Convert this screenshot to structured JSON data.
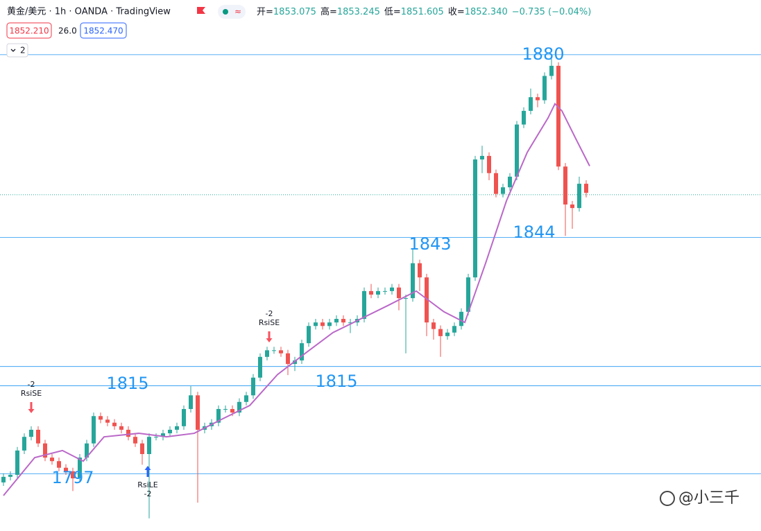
{
  "chart_data": {
    "type": "candlestick",
    "title": "黄金/美元 · 1h · OANDA · TradingView",
    "readout": [
      {
        "key": "开=",
        "value": 1853.075,
        "label": "1853.075"
      },
      {
        "key": "高=",
        "value": 1853.245,
        "label": "1853.245"
      },
      {
        "key": "低=",
        "value": 1851.605,
        "label": "1851.605"
      },
      {
        "key": "收=",
        "value": 1852.34,
        "label": "1852.340"
      }
    ],
    "change": "−0.735 (−0.04%)",
    "bid": "1852.210",
    "spread": "26.0",
    "ask": "1852.470",
    "indicator_count": "2",
    "ylim": [
      1785.9,
      1890.8
    ],
    "up_color": "#26a69a",
    "down_color": "#ef5350",
    "open": [
      1795.5,
      1796.6,
      1797.0,
      1801.8,
      1804.5,
      1805.9,
      1803.2,
      1800.4,
      1799.7,
      1798.4,
      1797.7,
      1796.3,
      1800.4,
      1803.2,
      1808.6,
      1807.9,
      1807.3,
      1806.6,
      1805.9,
      1804.5,
      1803.2,
      1801.1,
      1804.5,
      1804.5,
      1805.2,
      1805.9,
      1806.6,
      1810.0,
      1812.7,
      1805.9,
      1806.6,
      1807.3,
      1810.0,
      1810.0,
      1809.3,
      1811.4,
      1812.7,
      1816.2,
      1820.3,
      1821.6,
      1821.6,
      1821.0,
      1818.9,
      1819.6,
      1823.0,
      1826.4,
      1827.1,
      1826.4,
      1827.1,
      1827.8,
      1827.1,
      1827.1,
      1827.8,
      1833.3,
      1832.6,
      1833.3,
      1833.3,
      1834.0,
      1831.9,
      1831.9,
      1838.8,
      1836.0,
      1827.1,
      1825.8,
      1824.4,
      1825.1,
      1826.4,
      1829.2,
      1836.0,
      1859.3,
      1860.0,
      1856.6,
      1852.5,
      1853.8,
      1855.9,
      1866.2,
      1868.9,
      1871.6,
      1871.0,
      1875.8,
      1877.8,
      1857.9,
      1850.4,
      1849.7,
      1854.5
    ],
    "high": [
      1797.3,
      1797.7,
      1802.5,
      1805.2,
      1806.6,
      1806.6,
      1803.9,
      1801.1,
      1800.4,
      1799.1,
      1798.4,
      1801.1,
      1803.9,
      1809.3,
      1809.3,
      1808.6,
      1808.0,
      1807.3,
      1806.6,
      1805.2,
      1803.9,
      1805.2,
      1805.2,
      1805.9,
      1806.6,
      1807.3,
      1810.7,
      1814.5,
      1813.4,
      1807.3,
      1808.0,
      1810.7,
      1810.7,
      1810.7,
      1812.1,
      1813.4,
      1816.9,
      1821.0,
      1822.3,
      1822.3,
      1822.3,
      1821.7,
      1820.3,
      1823.7,
      1827.1,
      1827.8,
      1827.8,
      1827.8,
      1828.5,
      1828.5,
      1827.8,
      1828.5,
      1834.0,
      1834.7,
      1834.0,
      1834.0,
      1834.7,
      1834.7,
      1832.6,
      1841.5,
      1839.5,
      1836.7,
      1827.8,
      1826.5,
      1825.8,
      1827.1,
      1829.9,
      1836.7,
      1860.0,
      1862.0,
      1860.7,
      1857.3,
      1854.5,
      1856.6,
      1866.9,
      1869.6,
      1873.3,
      1872.3,
      1876.5,
      1879.2,
      1878.5,
      1858.6,
      1851.1,
      1855.9,
      1855.2
    ],
    "low": [
      1794.8,
      1795.9,
      1796.3,
      1801.1,
      1803.8,
      1802.5,
      1799.7,
      1799.0,
      1797.7,
      1797.0,
      1793.8,
      1795.6,
      1799.7,
      1802.5,
      1807.2,
      1806.6,
      1805.9,
      1805.2,
      1803.8,
      1802.5,
      1799.0,
      1788.4,
      1803.8,
      1803.8,
      1804.5,
      1805.2,
      1805.9,
      1809.3,
      1791.5,
      1805.2,
      1805.9,
      1806.6,
      1809.3,
      1808.6,
      1808.6,
      1810.7,
      1812.0,
      1815.5,
      1819.6,
      1820.9,
      1820.3,
      1816.7,
      1817.5,
      1818.9,
      1822.3,
      1825.7,
      1825.7,
      1825.7,
      1826.4,
      1826.4,
      1825.0,
      1826.4,
      1827.1,
      1831.9,
      1831.9,
      1832.6,
      1832.6,
      1829.5,
      1821.0,
      1831.2,
      1833.3,
      1824.4,
      1823.7,
      1820.3,
      1823.7,
      1824.4,
      1825.7,
      1828.5,
      1835.3,
      1856.6,
      1855.2,
      1851.8,
      1851.8,
      1853.1,
      1855.2,
      1865.5,
      1868.2,
      1869.6,
      1870.3,
      1875.1,
      1857.2,
      1844.2,
      1845.6,
      1849.0,
      1851.8
    ],
    "close": [
      1796.6,
      1797.0,
      1801.8,
      1804.5,
      1805.9,
      1803.2,
      1800.4,
      1799.7,
      1798.4,
      1797.7,
      1796.3,
      1800.4,
      1803.2,
      1808.6,
      1807.9,
      1807.3,
      1806.6,
      1805.9,
      1804.5,
      1803.2,
      1801.1,
      1804.5,
      1804.5,
      1805.2,
      1805.9,
      1806.6,
      1810.0,
      1812.7,
      1805.9,
      1806.6,
      1807.3,
      1810.0,
      1810.0,
      1809.3,
      1811.4,
      1812.7,
      1816.2,
      1820.3,
      1821.6,
      1821.6,
      1821.0,
      1818.9,
      1819.6,
      1823.0,
      1826.4,
      1827.1,
      1826.4,
      1827.1,
      1827.8,
      1827.1,
      1827.1,
      1827.8,
      1833.3,
      1832.6,
      1833.3,
      1833.3,
      1834.0,
      1831.9,
      1831.9,
      1838.8,
      1836.0,
      1827.1,
      1825.8,
      1824.4,
      1825.1,
      1826.4,
      1829.2,
      1836.0,
      1859.3,
      1860.0,
      1856.6,
      1852.5,
      1853.8,
      1855.9,
      1866.2,
      1868.9,
      1871.6,
      1871.0,
      1875.8,
      1877.8,
      1857.9,
      1850.4,
      1849.7,
      1854.5,
      1852.7
    ],
    "moving_average": {
      "color": "#ba68c8",
      "x": [
        0,
        4.5,
        8.5,
        11.5,
        14.5,
        19.5,
        23.5,
        27.5,
        31.5,
        35.5,
        39.5,
        43.5,
        47.5,
        51.5,
        55.5,
        59.5,
        63.5,
        66.5,
        69.5,
        72.5,
        75.5,
        78.5,
        79.5,
        80.5,
        82.5,
        84.5
      ],
      "values": [
        1792.9,
        1800.4,
        1801.8,
        1799.7,
        1804.5,
        1805.2,
        1804.5,
        1805.2,
        1808.0,
        1810.7,
        1816.8,
        1821.0,
        1825.1,
        1827.8,
        1830.5,
        1833.3,
        1829.2,
        1827.1,
        1838.8,
        1851.1,
        1860.7,
        1867.5,
        1870.3,
        1868.9,
        1863.4,
        1858.0
      ]
    },
    "levels": {
      "color": "#2196f3",
      "values": [
        1880,
        1843.9,
        1818.4,
        1814.6,
        1797.2
      ]
    },
    "annotations": [
      "1880",
      "1843",
      "1844",
      "1815",
      "1815",
      "1797"
    ],
    "signals": [
      {
        "qty": -2,
        "name": "RsiSE"
      },
      {
        "qty": -2,
        "name": "RsiSE"
      },
      {
        "qty": -2,
        "name": "RsiLE"
      }
    ],
    "watermark": "@小三千"
  }
}
